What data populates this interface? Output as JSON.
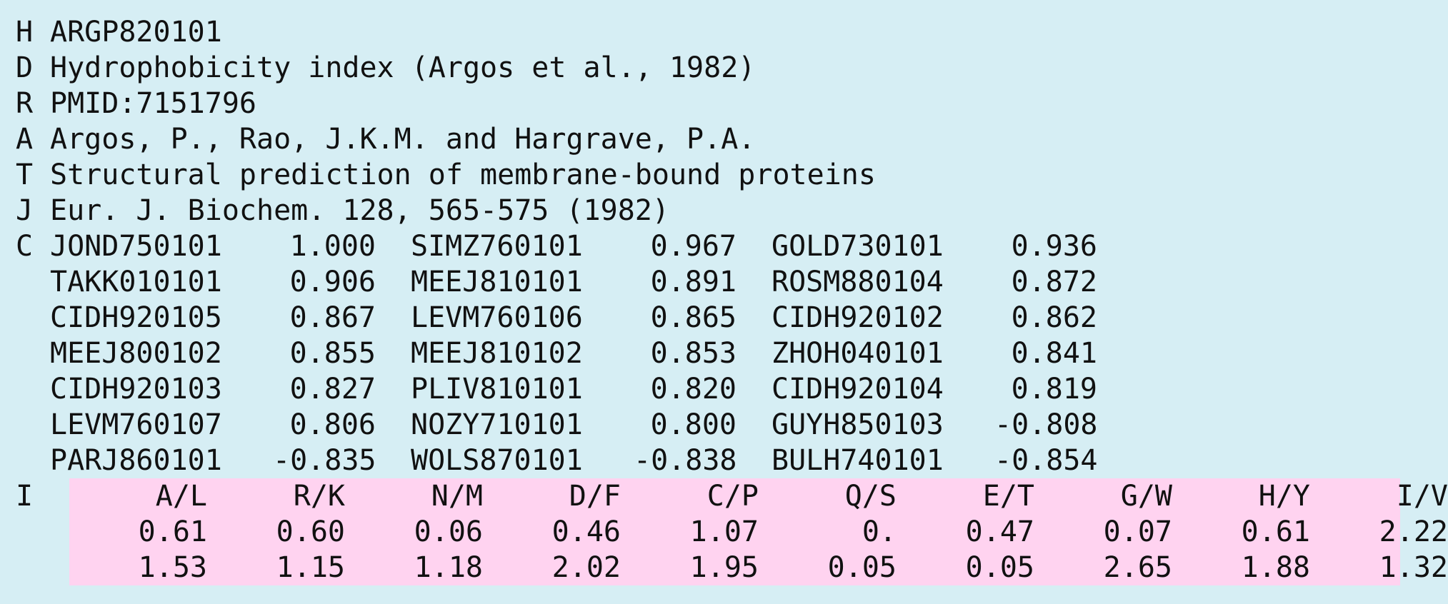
{
  "record": {
    "H": {
      "code": "H",
      "text": "ARGP820101"
    },
    "D": {
      "code": "D",
      "text": "Hydrophobicity index (Argos et al., 1982)"
    },
    "R": {
      "code": "R",
      "text": "PMID:7151796"
    },
    "A": {
      "code": "A",
      "text": "Argos, P., Rao, J.K.M. and Hargrave, P.A."
    },
    "T": {
      "code": "T",
      "text": "Structural prediction of membrane-bound proteins"
    },
    "J": {
      "code": "J",
      "text": "Eur. J. Biochem. 128, 565-575 (1982)"
    }
  },
  "correlations": {
    "code": "C",
    "rows": [
      [
        {
          "id": "JOND750101",
          "value": "1.000"
        },
        {
          "id": "SIMZ760101",
          "value": "0.967"
        },
        {
          "id": "GOLD730101",
          "value": "0.936"
        }
      ],
      [
        {
          "id": "TAKK010101",
          "value": "0.906"
        },
        {
          "id": "MEEJ810101",
          "value": "0.891"
        },
        {
          "id": "ROSM880104",
          "value": "0.872"
        }
      ],
      [
        {
          "id": "CIDH920105",
          "value": "0.867"
        },
        {
          "id": "LEVM760106",
          "value": "0.865"
        },
        {
          "id": "CIDH920102",
          "value": "0.862"
        }
      ],
      [
        {
          "id": "MEEJ800102",
          "value": "0.855"
        },
        {
          "id": "MEEJ810102",
          "value": "0.853"
        },
        {
          "id": "ZHOH040101",
          "value": "0.841"
        }
      ],
      [
        {
          "id": "CIDH920103",
          "value": "0.827"
        },
        {
          "id": "PLIV810101",
          "value": "0.820"
        },
        {
          "id": "CIDH920104",
          "value": "0.819"
        }
      ],
      [
        {
          "id": "LEVM760107",
          "value": "0.806"
        },
        {
          "id": "NOZY710101",
          "value": "0.800"
        },
        {
          "id": "GUYH850103",
          "value": "-0.808"
        }
      ],
      [
        {
          "id": "PARJ860101",
          "value": "-0.835"
        },
        {
          "id": "WOLS870101",
          "value": "-0.838"
        },
        {
          "id": "BULH740101",
          "value": "-0.854"
        }
      ]
    ]
  },
  "index": {
    "code": "I",
    "headers": [
      "A/L",
      "R/K",
      "N/M",
      "D/F",
      "C/P",
      "Q/S",
      "E/T",
      "G/W",
      "H/Y",
      "I/V"
    ],
    "row1": [
      "0.61",
      "0.60",
      "0.06",
      "0.46",
      "1.07",
      "0.",
      "0.47",
      "0.07",
      "0.61",
      "2.22"
    ],
    "row2": [
      "1.53",
      "1.15",
      "1.18",
      "2.02",
      "1.95",
      "0.05",
      "0.05",
      "2.65",
      "1.88",
      "1.32"
    ]
  },
  "colors": {
    "background": "#d6eef4",
    "index_highlight": "#ffd3f0"
  }
}
